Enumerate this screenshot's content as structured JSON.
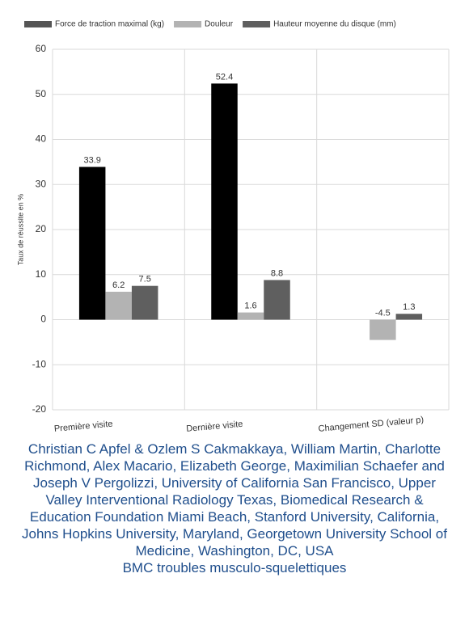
{
  "chart_data": {
    "type": "bar",
    "categories": [
      "Première visite",
      "Dernière visite",
      "Changement SD (valeur p)"
    ],
    "series": [
      {
        "name": "Force de traction maximal (kg)",
        "color": "#000000",
        "values": [
          33.9,
          52.4,
          null
        ]
      },
      {
        "name": "Douleur",
        "color": "#b3b3b3",
        "values": [
          6.2,
          1.6,
          -4.5
        ]
      },
      {
        "name": "Hauteur moyenne du disque (mm)",
        "color": "#5f5f5f",
        "values": [
          7.5,
          8.8,
          1.3
        ]
      }
    ],
    "y_label": "Taux de réussite en %",
    "ylim": [
      -20,
      60
    ],
    "yticks": [
      -20,
      -10,
      0,
      10,
      20,
      30,
      40,
      50,
      60
    ],
    "grid": true,
    "legend": "top"
  },
  "caption": {
    "authors": "Christian C Apfel & Ozlem S Cakmakkaya, William Martin, Charlotte Richmond, Alex Macario, Elizabeth George, Maximilian Schaefer and Joseph V Pergolizzi, University of California San Francisco, Upper Valley Interventional Radiology Texas, Biomedical Research & Education Foundation Miami Beach, Stanford University, California, Johns Hopkins University, Maryland, Georgetown University School of Medicine, Washington, DC, USA",
    "source": "BMC troubles musculo-squelettiques"
  }
}
